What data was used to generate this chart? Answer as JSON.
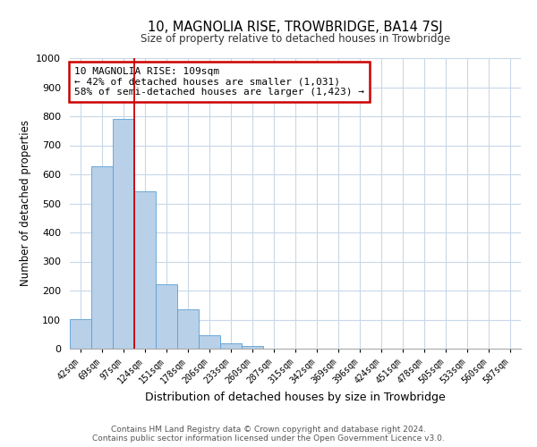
{
  "title": "10, MAGNOLIA RISE, TROWBRIDGE, BA14 7SJ",
  "subtitle": "Size of property relative to detached houses in Trowbridge",
  "xlabel": "Distribution of detached houses by size in Trowbridge",
  "ylabel": "Number of detached properties",
  "bar_labels": [
    "42sqm",
    "69sqm",
    "97sqm",
    "124sqm",
    "151sqm",
    "178sqm",
    "206sqm",
    "233sqm",
    "260sqm",
    "287sqm",
    "315sqm",
    "342sqm",
    "369sqm",
    "396sqm",
    "424sqm",
    "451sqm",
    "478sqm",
    "505sqm",
    "533sqm",
    "560sqm",
    "587sqm"
  ],
  "bar_values": [
    103,
    628,
    790,
    543,
    222,
    135,
    45,
    18,
    10,
    0,
    0,
    0,
    0,
    0,
    0,
    0,
    0,
    0,
    0,
    0,
    0
  ],
  "bar_color": "#b8d0e8",
  "bar_edgecolor": "#5a9fd4",
  "vline_x": 2.5,
  "vline_color": "#cc0000",
  "ylim": [
    0,
    1000
  ],
  "yticks": [
    0,
    100,
    200,
    300,
    400,
    500,
    600,
    700,
    800,
    900,
    1000
  ],
  "annotation_text": "10 MAGNOLIA RISE: 109sqm\n← 42% of detached houses are smaller (1,031)\n58% of semi-detached houses are larger (1,423) →",
  "annotation_box_edgecolor": "#cc0000",
  "footer1": "Contains HM Land Registry data © Crown copyright and database right 2024.",
  "footer2": "Contains public sector information licensed under the Open Government Licence v3.0.",
  "bg_color": "#ffffff",
  "grid_color": "#c8d8e8"
}
